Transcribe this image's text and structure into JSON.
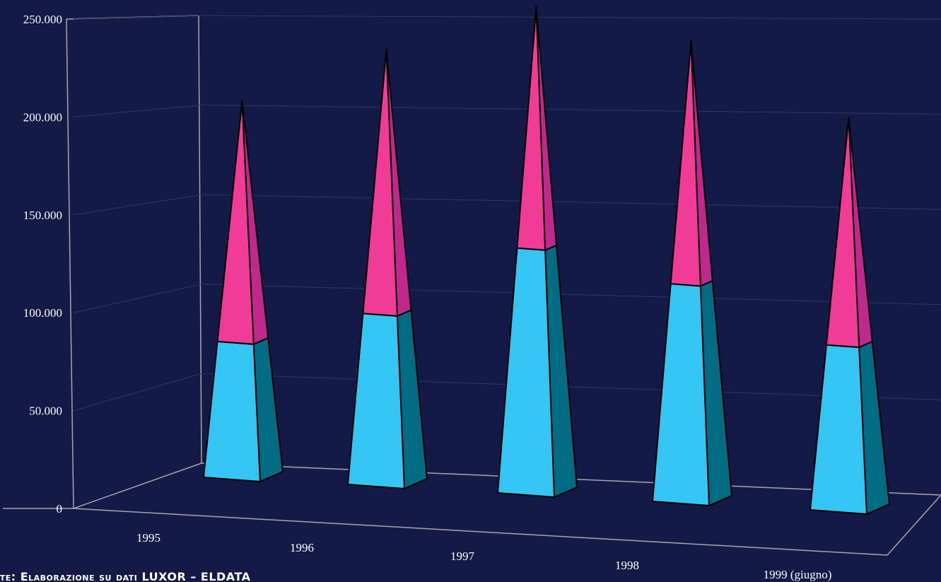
{
  "chart_data": {
    "type": "bar",
    "style": "3d-stacked-pyramid",
    "categories": [
      "1995",
      "1996",
      "1997",
      "1998",
      "1999 (giugno)"
    ],
    "series": [
      {
        "values": [
          70000,
          88000,
          126000,
          112000,
          85000
        ],
        "color": "#35c5f2"
      },
      {
        "values": [
          124000,
          136000,
          124000,
          125000,
          117000
        ],
        "color": "#f03c96"
      }
    ],
    "y_ticks": [
      "0",
      "50.000",
      "100.000",
      "150.000",
      "200.000",
      "250.000"
    ],
    "ylim": [
      0,
      250000
    ],
    "grid": true,
    "background": "#141a47",
    "axis_color": "#a6a6a6",
    "gridline_color": "#2e3566"
  },
  "source_note": "nte: Elaborazione su dati LUXOR – ELDATA"
}
